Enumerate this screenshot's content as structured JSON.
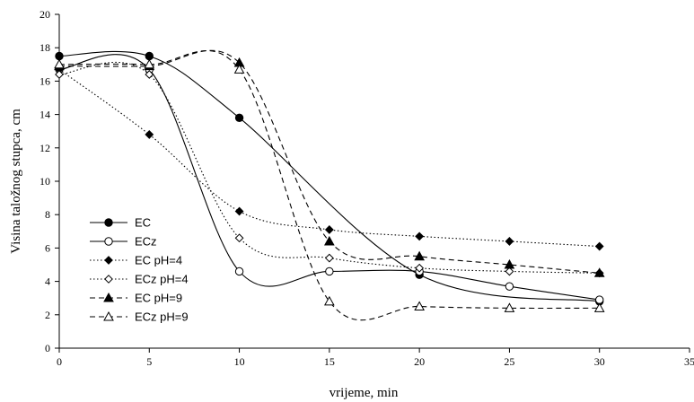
{
  "chart_data": {
    "type": "line",
    "xlabel": "vrijeme, min",
    "ylabel": "Visina taložnog stupca, cm",
    "xlim": [
      0,
      35
    ],
    "ylim": [
      0,
      20
    ],
    "xticks": [
      0,
      5,
      10,
      15,
      20,
      25,
      30,
      35
    ],
    "yticks": [
      0,
      2,
      4,
      6,
      8,
      10,
      12,
      14,
      16,
      18,
      20
    ],
    "grid": false,
    "legend_position": "left",
    "series": [
      {
        "name": "EC",
        "line": "solid",
        "marker": "circle",
        "filled": true,
        "x": [
          0,
          5,
          10,
          20,
          30
        ],
        "y": [
          17.5,
          17.5,
          13.8,
          4.4,
          2.8
        ]
      },
      {
        "name": "ECz",
        "line": "solid",
        "marker": "circle",
        "filled": false,
        "x": [
          0,
          5,
          10,
          15,
          20,
          25,
          30
        ],
        "y": [
          16.7,
          16.7,
          4.6,
          4.6,
          4.6,
          3.7,
          2.9
        ]
      },
      {
        "name": "EC pH=4",
        "line": "dotted",
        "marker": "diamond",
        "filled": true,
        "x": [
          0,
          5,
          10,
          15,
          20,
          25,
          30
        ],
        "y": [
          16.7,
          12.8,
          8.2,
          7.1,
          6.7,
          6.4,
          6.1
        ]
      },
      {
        "name": "ECz pH=4",
        "line": "dotted",
        "marker": "diamond",
        "filled": false,
        "x": [
          0,
          5,
          10,
          15,
          20,
          25,
          30
        ],
        "y": [
          16.4,
          16.4,
          6.6,
          5.4,
          4.8,
          4.6,
          4.5
        ]
      },
      {
        "name": "EC pH=9",
        "line": "dashed",
        "marker": "triangle",
        "filled": true,
        "x": [
          0,
          5,
          10,
          15,
          20,
          25,
          30
        ],
        "y": [
          16.9,
          16.9,
          17.1,
          6.4,
          5.5,
          5.0,
          4.5
        ]
      },
      {
        "name": "ECz pH=9",
        "line": "dashed",
        "marker": "triangle",
        "filled": false,
        "x": [
          0,
          5,
          10,
          15,
          20,
          25,
          30
        ],
        "y": [
          17.0,
          17.0,
          16.7,
          2.8,
          2.5,
          2.4,
          2.4
        ]
      }
    ]
  }
}
